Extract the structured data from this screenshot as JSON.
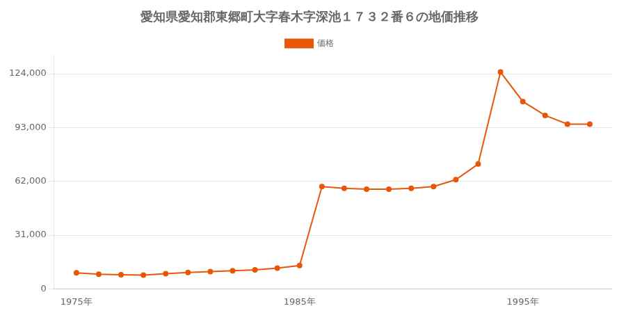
{
  "chart_data": {
    "type": "line",
    "title": "愛知県愛知郡東郷町大字春木字深池１７３２番６の地価推移",
    "x": [
      1975,
      1976,
      1977,
      1978,
      1979,
      1980,
      1981,
      1982,
      1983,
      1984,
      1985,
      1986,
      1987,
      1988,
      1989,
      1990,
      1991,
      1992,
      1993,
      1994,
      1995,
      1996,
      1997,
      1998
    ],
    "series": [
      {
        "name": "価格",
        "color": "#E8560A",
        "marker": "circle",
        "line_style": "solid",
        "values": [
          9300,
          8500,
          8200,
          8000,
          8800,
          9500,
          10000,
          10500,
          11000,
          12000,
          13500,
          59000,
          58000,
          57500,
          57500,
          58000,
          59000,
          63000,
          72000,
          125000,
          108000,
          100000,
          95000,
          95000
        ]
      }
    ],
    "xlim": [
      1974,
      1999
    ],
    "xticks": [
      {
        "value": 1975,
        "label": "1975年"
      },
      {
        "value": 1985,
        "label": "1985年"
      },
      {
        "value": 1995,
        "label": "1995年"
      }
    ],
    "ylim": [
      0,
      135000
    ],
    "yticks": [
      0,
      {
        "value": 31000,
        "label": "31,000"
      },
      {
        "value": 62000,
        "label": "62,000"
      },
      {
        "value": 93000,
        "label": "93,000"
      },
      {
        "value": 124000,
        "label": "124,000"
      }
    ],
    "grid": "y",
    "legend": "top"
  }
}
